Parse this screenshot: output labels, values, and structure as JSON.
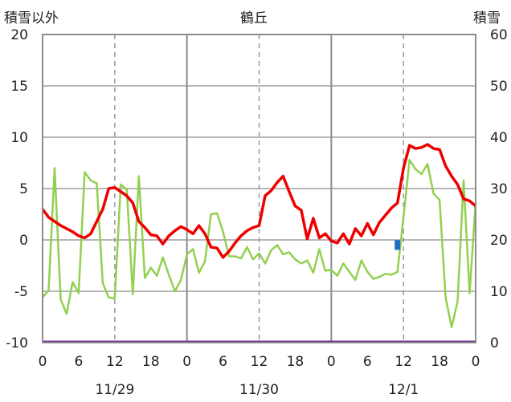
{
  "chart_data": {
    "type": "line",
    "title": "鶴丘",
    "ylabel_left": "積雪以外",
    "ylabel_right": "積雪",
    "y_left_range": [
      -10,
      20
    ],
    "y_left_ticks": [
      "20",
      "15",
      "10",
      "5",
      "0",
      "-5",
      "-10"
    ],
    "y_right_range": [
      0,
      60
    ],
    "y_right_ticks": [
      "60",
      "50",
      "40",
      "30",
      "20",
      "10",
      "0"
    ],
    "x_range_hours": [
      0,
      72
    ],
    "x_ticks": [
      "0",
      "6",
      "12",
      "18",
      "0",
      "6",
      "12",
      "18",
      "0",
      "6",
      "12",
      "18",
      "0"
    ],
    "date_labels": [
      "11/29",
      "11/30",
      "12/1"
    ],
    "grid": "vertical dashed at 12h, solid at midnight; horizontal solid",
    "colors": {
      "temperature": "#ee0000",
      "other": "#92d050",
      "snow": "#1f6fc5",
      "baseline": "#7030a0",
      "grid": "#8c8c8c"
    },
    "series": [
      {
        "axis": "left",
        "color": "#ee0000",
        "x": [
          0,
          1,
          2,
          3,
          4,
          5,
          6,
          7,
          8,
          9,
          10,
          11,
          12,
          13,
          14,
          15,
          16,
          17,
          18,
          19,
          20,
          21,
          22,
          23,
          24,
          25,
          26,
          27,
          28,
          29,
          30,
          31,
          32,
          33,
          34,
          35,
          36,
          37,
          38,
          39,
          40,
          41,
          42,
          43,
          44,
          45,
          46,
          47,
          48,
          49,
          50,
          51,
          52,
          53,
          54,
          55,
          56,
          57,
          58,
          59,
          60,
          61,
          62,
          63,
          64,
          65,
          66,
          67,
          68,
          69,
          70,
          71,
          72
        ],
        "values": [
          3.0,
          2.2,
          1.8,
          1.4,
          1.1,
          0.8,
          0.4,
          0.2,
          0.6,
          1.8,
          3.0,
          5.0,
          5.1,
          4.7,
          4.3,
          3.6,
          1.8,
          1.2,
          0.5,
          0.4,
          -0.4,
          0.4,
          0.9,
          1.3,
          1.0,
          0.6,
          1.4,
          0.6,
          -0.7,
          -0.8,
          -1.7,
          -1.1,
          -0.3,
          0.4,
          0.9,
          1.2,
          1.4,
          4.3,
          4.8,
          5.6,
          6.2,
          4.7,
          3.3,
          2.9,
          0.1,
          2.1,
          0.2,
          0.6,
          -0.1,
          -0.3,
          0.6,
          -0.4,
          1.1,
          0.4,
          1.6,
          0.5,
          1.7,
          2.4,
          3.1,
          3.6,
          7.0,
          9.2,
          8.9,
          9.0,
          9.3,
          8.9,
          8.8,
          7.2,
          6.2,
          5.4,
          4.0,
          3.8,
          3.3
        ]
      },
      {
        "axis": "left",
        "color": "#92d050",
        "x": [
          0,
          1,
          2,
          3,
          4,
          5,
          6,
          7,
          8,
          9,
          10,
          11,
          12,
          13,
          14,
          15,
          16,
          17,
          18,
          19,
          20,
          21,
          22,
          23,
          24,
          25,
          26,
          27,
          28,
          29,
          30,
          31,
          32,
          33,
          34,
          35,
          36,
          37,
          38,
          39,
          40,
          41,
          42,
          43,
          44,
          45,
          46,
          47,
          48,
          49,
          50,
          51,
          52,
          53,
          54,
          55,
          56,
          57,
          58,
          59,
          60,
          61,
          62,
          63,
          64,
          65,
          66,
          67,
          68,
          69,
          70,
          71,
          72
        ],
        "values": [
          -5.6,
          -4.9,
          7.0,
          -5.8,
          -7.2,
          -4.1,
          -5.2,
          6.6,
          5.8,
          5.5,
          -4.2,
          -5.6,
          -5.7,
          5.4,
          4.9,
          -5.3,
          6.2,
          -3.7,
          -2.7,
          -3.5,
          -1.7,
          -3.4,
          -5.0,
          -3.9,
          -1.4,
          -0.9,
          -3.2,
          -2.1,
          2.5,
          2.6,
          0.8,
          -1.6,
          -1.6,
          -1.8,
          -0.7,
          -1.9,
          -1.3,
          -2.3,
          -1.0,
          -0.5,
          -1.4,
          -1.2,
          -1.9,
          -2.3,
          -2.0,
          -3.2,
          -0.9,
          -3.0,
          -2.9,
          -3.5,
          -2.3,
          -3.1,
          -3.9,
          -2.0,
          -3.1,
          -3.8,
          -3.6,
          -3.3,
          -3.4,
          -3.1,
          2.2,
          7.8,
          6.9,
          6.4,
          7.4,
          4.5,
          3.9,
          -5.6,
          -8.5,
          -6.0,
          5.8,
          -5.2,
          3.7
        ]
      },
      {
        "axis": "right",
        "color": "#1f6fc5",
        "x": [
          59
        ],
        "values": [
          19
        ]
      }
    ]
  }
}
